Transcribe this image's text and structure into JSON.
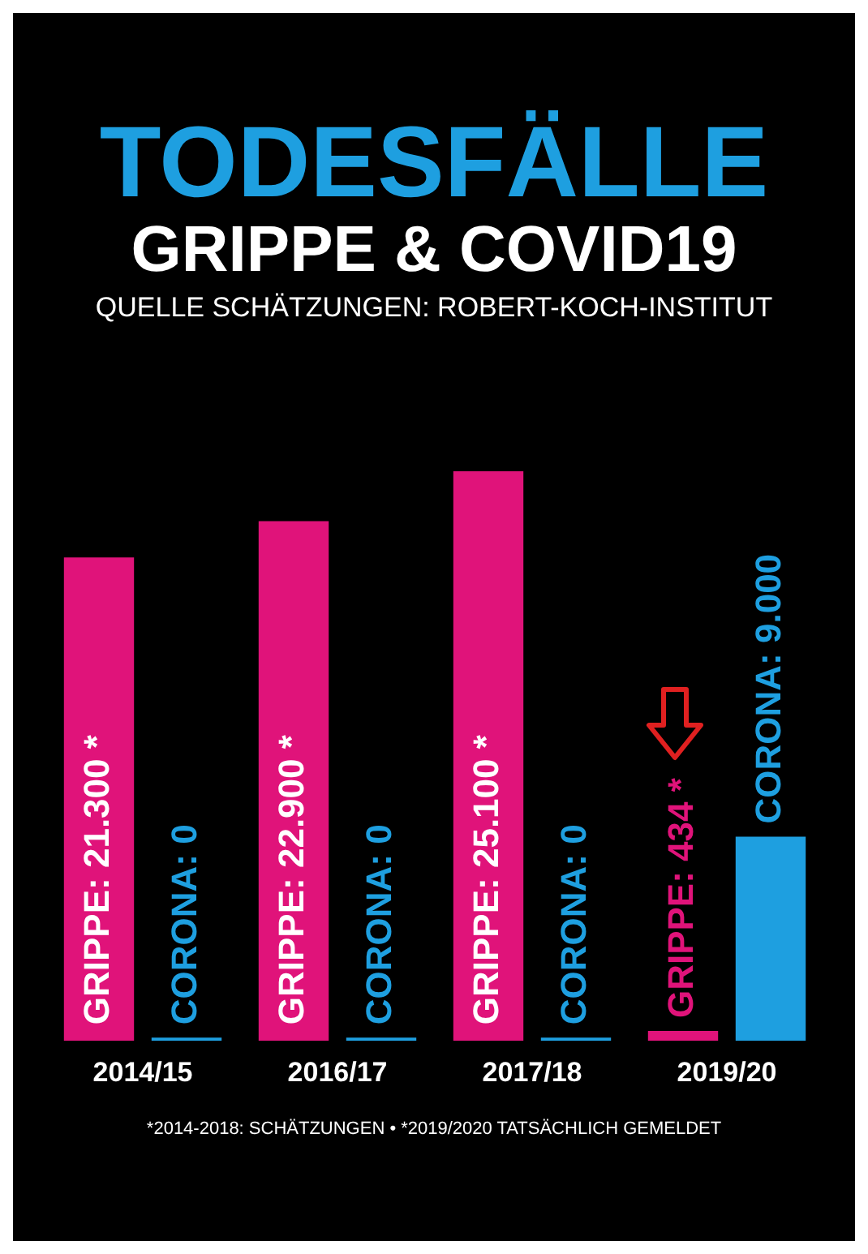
{
  "chart_data": {
    "type": "bar",
    "title": "TODESFÄLLE",
    "subtitle": "GRIPPE & COVID19",
    "annotations": [
      "QUELLE SCHÄTZUNGEN: ROBERT-KOCH-INSTITUT",
      "*2014-2018: SCHÄTZUNGEN • *2019/2020 TATSÄCHLICH GEMELDET"
    ],
    "categories": [
      "2014/15",
      "2016/17",
      "2017/18",
      "2019/20"
    ],
    "series": [
      {
        "color": "#e0137a",
        "values": [
          21300,
          22900,
          25100,
          434
        ],
        "value_labels": [
          "GRIPPE: 21.300 *",
          "GRIPPE: 22.900 *",
          "GRIPPE: 25.100 *",
          "GRIPPE: 434 *"
        ]
      },
      {
        "color": "#1e9fe0",
        "values": [
          0,
          0,
          0,
          9000
        ],
        "value_labels": [
          "CORONA: 0",
          "CORONA: 0",
          "CORONA: 0",
          "CORONA: 9.000"
        ]
      }
    ]
  }
}
